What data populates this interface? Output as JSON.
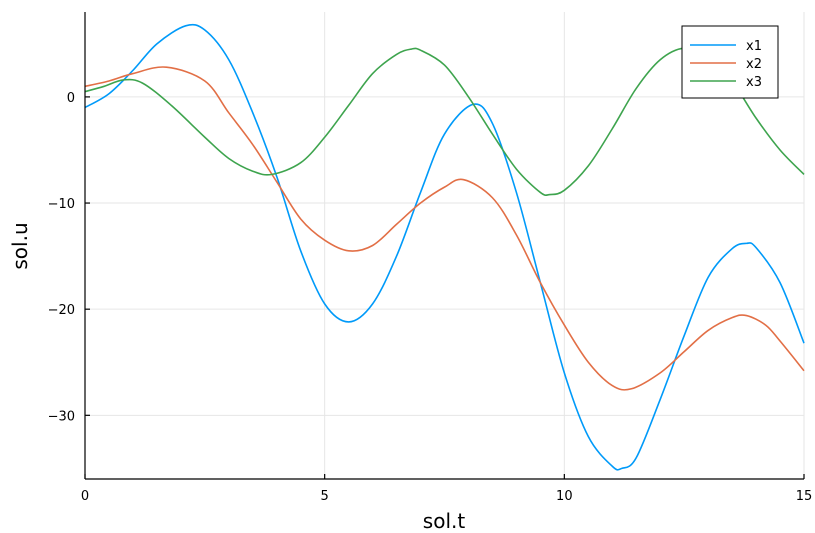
{
  "chart_data": {
    "type": "line",
    "title": "",
    "xlabel": "sol.t",
    "ylabel": "sol.u",
    "xlim": [
      0,
      15
    ],
    "ylim": [
      -36,
      8
    ],
    "xticks": [
      0,
      5,
      10,
      15
    ],
    "yticks": [
      0,
      -10,
      -20,
      -30
    ],
    "tick_labels_x": [
      "0",
      "5",
      "10",
      "15"
    ],
    "tick_labels_y": [
      "0",
      "−10",
      "−20",
      "−30"
    ],
    "grid": true,
    "legend": "top-right",
    "series": [
      {
        "name": "x1",
        "color": "#009af9",
        "x": [
          0,
          0.5,
          1.0,
          1.5,
          2.1,
          2.5,
          3.0,
          3.5,
          4.0,
          4.5,
          5.0,
          5.5,
          6.0,
          6.5,
          7.0,
          7.5,
          8.1,
          8.5,
          9.0,
          9.5,
          10.0,
          10.5,
          11.0,
          11.2,
          11.5,
          12.0,
          12.5,
          13.0,
          13.5,
          13.8,
          14.0,
          14.5,
          15.0
        ],
        "y": [
          -1.0,
          0.3,
          2.5,
          5.0,
          6.7,
          6.3,
          3.5,
          -1.5,
          -7.5,
          -14.5,
          -19.5,
          -21.2,
          -19.5,
          -15.0,
          -9.0,
          -3.5,
          -0.7,
          -2.5,
          -9.0,
          -17.5,
          -26.0,
          -32.0,
          -34.8,
          -35.0,
          -34.0,
          -28.5,
          -22.5,
          -17.0,
          -14.3,
          -13.8,
          -14.2,
          -17.5,
          -23.2
        ]
      },
      {
        "name": "x2",
        "color": "#e26f46",
        "x": [
          0,
          0.5,
          1.0,
          1.7,
          2.5,
          3.0,
          3.5,
          4.0,
          4.5,
          5.0,
          5.5,
          6.0,
          6.5,
          7.0,
          7.5,
          7.9,
          8.5,
          9.0,
          9.5,
          10.0,
          10.5,
          11.0,
          11.4,
          12.0,
          12.5,
          13.0,
          13.5,
          13.8,
          14.2,
          14.5,
          15.0
        ],
        "y": [
          1.0,
          1.5,
          2.2,
          2.8,
          1.5,
          -1.5,
          -4.5,
          -8.0,
          -11.5,
          -13.5,
          -14.5,
          -14.0,
          -12.0,
          -10.0,
          -8.5,
          -7.8,
          -9.5,
          -13.0,
          -17.5,
          -21.5,
          -25.0,
          -27.2,
          -27.5,
          -26.0,
          -24.0,
          -22.0,
          -20.8,
          -20.6,
          -21.5,
          -23.0,
          -25.8
        ]
      },
      {
        "name": "x3",
        "color": "#3ea44e",
        "x": [
          0,
          0.4,
          0.8,
          1.2,
          1.8,
          2.5,
          3.0,
          3.5,
          3.9,
          4.5,
          5.0,
          5.5,
          6.0,
          6.5,
          6.8,
          7.0,
          7.5,
          8.0,
          8.5,
          9.0,
          9.5,
          9.7,
          10.0,
          10.5,
          11.0,
          11.5,
          12.0,
          12.5,
          13.0,
          13.5,
          14.0,
          14.5,
          15.0
        ],
        "y": [
          0.5,
          1.0,
          1.6,
          1.3,
          -0.8,
          -3.8,
          -5.8,
          -7.0,
          -7.3,
          -6.2,
          -3.8,
          -0.8,
          2.2,
          4.0,
          4.5,
          4.4,
          3.0,
          0.0,
          -3.5,
          -6.8,
          -9.0,
          -9.2,
          -8.8,
          -6.5,
          -3.0,
          0.8,
          3.5,
          4.6,
          4.0,
          1.5,
          -2.0,
          -5.0,
          -7.3
        ]
      }
    ]
  }
}
